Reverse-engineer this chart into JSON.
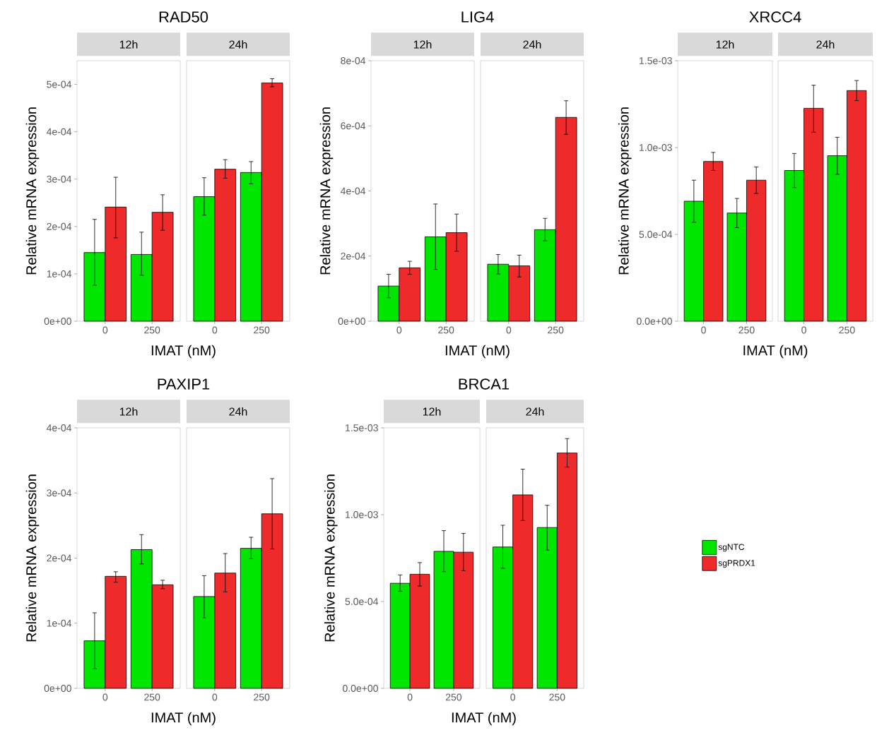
{
  "chart_data": [
    {
      "type": "bar",
      "title": "RAD50",
      "subtitle": "12h",
      "xlabel": "IMAT (nM)",
      "ylabel": "Relative mRNA expression",
      "categories": [
        "0",
        "250"
      ],
      "ylim": [
        0,
        0.00055
      ],
      "yticks": [
        {
          "value": 0,
          "label": "0e+00"
        },
        {
          "value": 0.0001,
          "label": "1e-04"
        },
        {
          "value": 0.0002,
          "label": "2e-04"
        },
        {
          "value": 0.0003,
          "label": "3e-04"
        },
        {
          "value": 0.0004,
          "label": "4e-04"
        },
        {
          "value": 0.0005,
          "label": "5e-04"
        }
      ],
      "series": [
        {
          "color": "#00e600",
          "values": [
            0.000145,
            0.000141
          ],
          "errors": [
            [
              7.6e-05,
              0.000215
            ],
            [
              9.7e-05,
              0.000188
            ]
          ]
        },
        {
          "color": "#ee2a2a",
          "values": [
            0.000241,
            0.00023
          ],
          "errors": [
            [
              0.000176,
              0.000304
            ],
            [
              0.000192,
              0.000267
            ]
          ]
        }
      ]
    },
    {
      "type": "bar",
      "subtitle": "24h",
      "categories": [
        "0",
        "250"
      ],
      "ylim": [
        0,
        0.00055
      ],
      "tick_labels": "x",
      "series": [
        {
          "color": "#00e600",
          "values": [
            0.000263,
            0.000314
          ],
          "errors": [
            [
              0.000224,
              0.000303
            ],
            [
              0.00029,
              0.000337
            ]
          ]
        },
        {
          "color": "#ee2a2a",
          "values": [
            0.000321,
            0.000503
          ],
          "errors": [
            [
              0.000302,
              0.000341
            ],
            [
              0.000495,
              0.000512
            ]
          ]
        }
      ]
    },
    {
      "type": "bar",
      "title": "LIG4",
      "subtitle": "12h",
      "xlabel": "IMAT (nM)",
      "ylabel": "Relative mRNA expression",
      "categories": [
        "0",
        "250"
      ],
      "ylim": [
        0,
        0.0008
      ],
      "yticks": [
        {
          "value": 0,
          "label": "0e+00"
        },
        {
          "value": 0.0002,
          "label": "2e-04"
        },
        {
          "value": 0.0004,
          "label": "4e-04"
        },
        {
          "value": 0.0006,
          "label": "6e-04"
        },
        {
          "value": 0.0008,
          "label": "8e-04"
        }
      ],
      "series": [
        {
          "color": "#00e600",
          "values": [
            0.000108,
            0.000259
          ],
          "errors": [
            [
              7.2e-05,
              0.000144
            ],
            [
              0.000159,
              0.00036
            ]
          ]
        },
        {
          "color": "#ee2a2a",
          "values": [
            0.000164,
            0.000272
          ],
          "errors": [
            [
              0.000144,
              0.000184
            ],
            [
              0.000215,
              0.000329
            ]
          ]
        }
      ]
    },
    {
      "type": "bar",
      "subtitle": "24h",
      "categories": [
        "0",
        "250"
      ],
      "ylim": [
        0,
        0.0008
      ],
      "tick_labels": "x",
      "series": [
        {
          "color": "#00e600",
          "values": [
            0.000175,
            0.000281
          ],
          "errors": [
            [
              0.000145,
              0.000205
            ],
            [
              0.000247,
              0.000316
            ]
          ]
        },
        {
          "color": "#ee2a2a",
          "values": [
            0.00017,
            0.000626
          ],
          "errors": [
            [
              0.000136,
              0.000203
            ],
            [
              0.000574,
              0.000677
            ]
          ]
        }
      ]
    },
    {
      "type": "bar",
      "title": "XRCC4",
      "subtitle": "12h",
      "xlabel": "IMAT (nM)",
      "ylabel": "Relative mRNA expression",
      "categories": [
        "0",
        "250"
      ],
      "ylim": [
        0,
        0.0015
      ],
      "yticks": [
        {
          "value": 0,
          "label": "0.0e+00"
        },
        {
          "value": 0.0005,
          "label": "5.0e-04"
        },
        {
          "value": 0.001,
          "label": "1.0e-03"
        },
        {
          "value": 0.0015,
          "label": "1.5e-03"
        }
      ],
      "series": [
        {
          "color": "#00e600",
          "values": [
            0.000691,
            0.000623
          ],
          "errors": [
            [
              0.00057,
              0.000812
            ],
            [
              0.000539,
              0.000707
            ]
          ]
        },
        {
          "color": "#ee2a2a",
          "values": [
            0.00092,
            0.000812
          ],
          "errors": [
            [
              0.000868,
              0.000972
            ],
            [
              0.000736,
              0.000888
            ]
          ]
        }
      ]
    },
    {
      "type": "bar",
      "subtitle": "24h",
      "categories": [
        "0",
        "250"
      ],
      "ylim": [
        0,
        0.0015
      ],
      "tick_labels": "x",
      "series": [
        {
          "color": "#00e600",
          "values": [
            0.000868,
            0.000953
          ],
          "errors": [
            [
              0.000769,
              0.000966
            ],
            [
              0.000846,
              0.001059
            ]
          ]
        },
        {
          "color": "#ee2a2a",
          "values": [
            0.001226,
            0.001328
          ],
          "errors": [
            [
              0.001088,
              0.001359
            ],
            [
              0.00127,
              0.001386
            ]
          ]
        }
      ]
    },
    {
      "type": "bar",
      "title": "PAXIP1",
      "subtitle": "12h",
      "xlabel": "IMAT (nM)",
      "ylabel": "Relative mRNA expression",
      "categories": [
        "0",
        "250"
      ],
      "ylim": [
        0,
        0.0004
      ],
      "yticks": [
        {
          "value": 0,
          "label": "0e+00"
        },
        {
          "value": 0.0001,
          "label": "1e-04"
        },
        {
          "value": 0.0002,
          "label": "2e-04"
        },
        {
          "value": 0.0003,
          "label": "3e-04"
        },
        {
          "value": 0.0004,
          "label": "4e-04"
        }
      ],
      "series": [
        {
          "color": "#00e600",
          "values": [
            7.3e-05,
            0.000213
          ],
          "errors": [
            [
              3e-05,
              0.000116
            ],
            [
              0.000191,
              0.000236
            ]
          ]
        },
        {
          "color": "#ee2a2a",
          "values": [
            0.000172,
            0.000159
          ],
          "errors": [
            [
              0.000163,
              0.000179
            ],
            [
              0.000153,
              0.000166
            ]
          ]
        }
      ]
    },
    {
      "type": "bar",
      "subtitle": "24h",
      "categories": [
        "0",
        "250"
      ],
      "ylim": [
        0,
        0.0004
      ],
      "tick_labels": "x",
      "series": [
        {
          "color": "#00e600",
          "values": [
            0.000141,
            0.000215
          ],
          "errors": [
            [
              0.000108,
              0.000173
            ],
            [
              0.000199,
              0.000232
            ]
          ]
        },
        {
          "color": "#ee2a2a",
          "values": [
            0.000177,
            0.000268
          ],
          "errors": [
            [
              0.000148,
              0.000207
            ],
            [
              0.000214,
              0.000322
            ]
          ]
        }
      ]
    },
    {
      "type": "bar",
      "title": "BRCA1",
      "subtitle": "12h",
      "xlabel": "IMAT (nM)",
      "ylabel": "Relative mRNA expression",
      "categories": [
        "0",
        "250"
      ],
      "ylim": [
        0,
        0.0015
      ],
      "yticks": [
        {
          "value": 0,
          "label": "0.0e+00"
        },
        {
          "value": 0.0005,
          "label": "5.0e-04"
        },
        {
          "value": 0.001,
          "label": "1.0e-03"
        },
        {
          "value": 0.0015,
          "label": "1.5e-03"
        }
      ],
      "series": [
        {
          "color": "#00e600",
          "values": [
            0.000605,
            0.000789
          ],
          "errors": [
            [
              0.000559,
              0.000653
            ],
            [
              0.000672,
              0.000908
            ]
          ]
        },
        {
          "color": "#ee2a2a",
          "values": [
            0.000657,
            0.000784
          ],
          "errors": [
            [
              0.000589,
              0.000724
            ],
            [
              0.000677,
              0.000892
            ]
          ]
        }
      ]
    },
    {
      "type": "bar",
      "subtitle": "24h",
      "categories": [
        "0",
        "250"
      ],
      "ylim": [
        0,
        0.0015
      ],
      "tick_labels": "x",
      "legend": "right",
      "series": [
        {
          "name": "sgNTC",
          "color": "#00e600",
          "values": [
            0.000814,
            0.000926
          ],
          "errors": [
            [
              0.000691,
              0.000939
            ],
            [
              0.000796,
              0.001054
            ]
          ]
        },
        {
          "name": "sgPRDX1",
          "color": "#ee2a2a",
          "values": [
            0.001114,
            0.001355
          ],
          "errors": [
            [
              0.000966,
              0.001262
            ],
            [
              0.001274,
              0.001438
            ]
          ]
        }
      ]
    }
  ]
}
